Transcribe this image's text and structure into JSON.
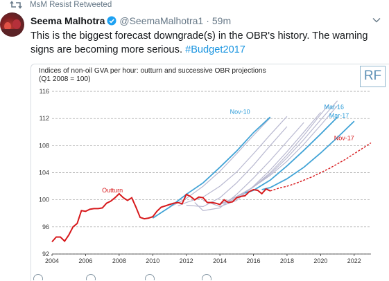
{
  "retweet": {
    "label": "MsM Resist Retweeted"
  },
  "tweet": {
    "author_name": "Seema Malhotra",
    "handle": "@SeemaMalhotra1",
    "separator": "·",
    "time": "59m",
    "text": "This is the biggest forecast downgrade(s) in the OBR's history. The warning signs are becoming more serious.",
    "hashtag": "#Budget2017"
  },
  "colors": {
    "outturn": "#d7191c",
    "highlight_blue": "#41a3d6",
    "grey_projection": "#b8b8d0",
    "label_blue": "#2a9bd8",
    "hashtag": "#1b95e0"
  },
  "chart_data": {
    "type": "line",
    "title": "Indices of non-oil GVA per hour: outturn and successive OBR projections",
    "subtitle": "(Q1 2008 = 100)",
    "logo": "RF",
    "xlim": [
      2004,
      2023
    ],
    "ylim": [
      92,
      116
    ],
    "x_ticks": [
      2004,
      2006,
      2008,
      2010,
      2012,
      2014,
      2016,
      2018,
      2020,
      2022
    ],
    "y_ticks": [
      92,
      96,
      100,
      104,
      108,
      112,
      116
    ],
    "grid": "horizontal dashed",
    "series": [
      {
        "name": "Outturn",
        "style": "outturn",
        "points": [
          [
            2004.0,
            93.8
          ],
          [
            2004.25,
            94.5
          ],
          [
            2004.5,
            94.5
          ],
          [
            2004.75,
            93.9
          ],
          [
            2005.0,
            94.8
          ],
          [
            2005.25,
            96.0
          ],
          [
            2005.5,
            96.5
          ],
          [
            2005.75,
            98.4
          ],
          [
            2006.0,
            98.3
          ],
          [
            2006.25,
            98.6
          ],
          [
            2006.5,
            98.7
          ],
          [
            2006.75,
            98.7
          ],
          [
            2007.0,
            98.8
          ],
          [
            2007.25,
            99.5
          ],
          [
            2007.5,
            99.8
          ],
          [
            2007.75,
            100.3
          ],
          [
            2008.0,
            100.9
          ],
          [
            2008.25,
            100.3
          ],
          [
            2008.5,
            99.9
          ],
          [
            2008.75,
            100.3
          ],
          [
            2009.0,
            98.9
          ],
          [
            2009.25,
            97.4
          ],
          [
            2009.5,
            97.2
          ],
          [
            2009.75,
            97.3
          ],
          [
            2010.0,
            97.5
          ],
          [
            2010.25,
            98.3
          ],
          [
            2010.5,
            98.9
          ],
          [
            2010.75,
            99.1
          ],
          [
            2011.0,
            99.3
          ],
          [
            2011.25,
            99.5
          ],
          [
            2011.5,
            99.6
          ],
          [
            2011.75,
            99.4
          ],
          [
            2012.0,
            100.8
          ],
          [
            2012.25,
            100.5
          ],
          [
            2012.5,
            100.0
          ],
          [
            2012.75,
            100.4
          ],
          [
            2013.0,
            100.3
          ],
          [
            2013.25,
            99.6
          ],
          [
            2013.5,
            99.6
          ],
          [
            2013.75,
            99.5
          ],
          [
            2014.0,
            99.3
          ],
          [
            2014.25,
            100.0
          ],
          [
            2014.5,
            99.6
          ],
          [
            2014.75,
            99.7
          ],
          [
            2015.0,
            100.3
          ],
          [
            2015.25,
            100.5
          ],
          [
            2015.5,
            100.6
          ],
          [
            2015.75,
            101.2
          ],
          [
            2016.0,
            101.5
          ],
          [
            2016.25,
            101.4
          ],
          [
            2016.5,
            100.9
          ],
          [
            2016.75,
            101.6
          ],
          [
            2017.0,
            101.3
          ]
        ]
      },
      {
        "name": "Nov-17",
        "style": "forecast",
        "points": [
          [
            2017.0,
            101.3
          ],
          [
            2017.5,
            101.7
          ],
          [
            2018.0,
            102.0
          ],
          [
            2018.5,
            102.4
          ],
          [
            2019.0,
            102.9
          ],
          [
            2019.5,
            103.4
          ],
          [
            2020.0,
            104.0
          ],
          [
            2020.5,
            104.6
          ],
          [
            2021.0,
            105.3
          ],
          [
            2021.5,
            106.0
          ],
          [
            2022.0,
            106.8
          ],
          [
            2022.5,
            107.6
          ],
          [
            2023.0,
            108.4
          ]
        ]
      },
      {
        "name": "Nov-10",
        "style": "highlight",
        "points": [
          [
            2010.0,
            97.3
          ],
          [
            2011.0,
            98.9
          ],
          [
            2012.0,
            100.8
          ],
          [
            2013.0,
            102.5
          ],
          [
            2014.0,
            104.8
          ],
          [
            2015.0,
            107.2
          ],
          [
            2016.0,
            109.9
          ],
          [
            2017.0,
            112.2
          ]
        ]
      },
      {
        "name": "Mar-16",
        "style": "highlight",
        "points": [
          [
            2015.5,
            101.0
          ],
          [
            2016.0,
            101.4
          ],
          [
            2017.0,
            102.9
          ],
          [
            2018.0,
            105.0
          ],
          [
            2019.0,
            107.3
          ],
          [
            2020.0,
            109.7
          ],
          [
            2021.0,
            112.2
          ]
        ]
      },
      {
        "name": "Mar-17",
        "style": "highlight",
        "points": [
          [
            2016.5,
            101.5
          ],
          [
            2017.0,
            101.8
          ],
          [
            2018.0,
            103.1
          ],
          [
            2019.0,
            104.8
          ],
          [
            2020.0,
            106.9
          ],
          [
            2021.0,
            109.2
          ],
          [
            2022.0,
            111.6
          ]
        ]
      },
      {
        "name": "",
        "style": "grey",
        "points": [
          [
            2011.0,
            98.9
          ],
          [
            2012.0,
            100.2
          ],
          [
            2013.0,
            102.0
          ],
          [
            2014.0,
            104.2
          ],
          [
            2015.0,
            106.8
          ],
          [
            2016.0,
            109.5
          ],
          [
            2017.0,
            112.1
          ]
        ]
      },
      {
        "name": "",
        "style": "grey",
        "points": [
          [
            2011.5,
            99.1
          ],
          [
            2012.0,
            99.6
          ],
          [
            2013.0,
            100.4
          ],
          [
            2014.0,
            102.0
          ],
          [
            2015.0,
            104.1
          ],
          [
            2016.0,
            106.8
          ],
          [
            2017.0,
            109.6
          ],
          [
            2018.0,
            112.3
          ]
        ]
      },
      {
        "name": "",
        "style": "grey",
        "points": [
          [
            2012.0,
            99.2
          ],
          [
            2013.0,
            99.0
          ],
          [
            2014.0,
            100.3
          ],
          [
            2015.0,
            102.5
          ],
          [
            2016.0,
            105.1
          ],
          [
            2017.0,
            108.0
          ],
          [
            2018.0,
            110.8
          ]
        ]
      },
      {
        "name": "",
        "style": "grey",
        "points": [
          [
            2012.5,
            99.6
          ],
          [
            2013.0,
            98.4
          ],
          [
            2014.0,
            98.8
          ],
          [
            2015.0,
            100.8
          ],
          [
            2016.0,
            103.2
          ],
          [
            2017.0,
            105.8
          ],
          [
            2018.0,
            108.6
          ],
          [
            2019.0,
            111.4
          ]
        ]
      },
      {
        "name": "",
        "style": "grey",
        "points": [
          [
            2013.0,
            99.9
          ],
          [
            2014.0,
            99.0
          ],
          [
            2015.0,
            99.9
          ],
          [
            2016.0,
            102.0
          ],
          [
            2017.0,
            104.4
          ],
          [
            2018.0,
            107.1
          ],
          [
            2019.0,
            110.0
          ],
          [
            2020.0,
            112.9
          ]
        ]
      },
      {
        "name": "",
        "style": "grey",
        "points": [
          [
            2013.5,
            99.7
          ],
          [
            2014.0,
            99.3
          ],
          [
            2015.0,
            100.2
          ],
          [
            2016.0,
            101.9
          ],
          [
            2017.0,
            104.0
          ],
          [
            2018.0,
            106.6
          ],
          [
            2019.0,
            109.5
          ],
          [
            2020.0,
            112.6
          ],
          [
            2020.5,
            114.1
          ]
        ]
      },
      {
        "name": "",
        "style": "grey",
        "points": [
          [
            2014.0,
            99.4
          ],
          [
            2015.0,
            100.4
          ],
          [
            2016.0,
            101.9
          ],
          [
            2017.0,
            103.8
          ],
          [
            2018.0,
            106.2
          ],
          [
            2019.0,
            108.9
          ],
          [
            2020.0,
            111.8
          ],
          [
            2021.0,
            114.6
          ]
        ]
      },
      {
        "name": "",
        "style": "grey",
        "points": [
          [
            2014.5,
            99.9
          ],
          [
            2015.0,
            100.5
          ],
          [
            2016.0,
            101.9
          ],
          [
            2017.0,
            103.6
          ],
          [
            2018.0,
            105.7
          ],
          [
            2019.0,
            108.2
          ],
          [
            2020.0,
            111.0
          ],
          [
            2021.0,
            113.9
          ]
        ]
      }
    ],
    "annotations": [
      {
        "text": "Outturn",
        "x": 2007.6,
        "y": 101.1,
        "color": "outturn"
      },
      {
        "text": "Nov-10",
        "x": 2015.2,
        "y": 112.7,
        "color": "label_blue"
      },
      {
        "text": "Mar-16",
        "x": 2020.8,
        "y": 113.4,
        "color": "label_blue"
      },
      {
        "text": "Mar-17",
        "x": 2021.1,
        "y": 112.1,
        "color": "label_blue"
      },
      {
        "text": "Nov-17",
        "x": 2021.4,
        "y": 108.8,
        "color": "outturn"
      }
    ]
  }
}
